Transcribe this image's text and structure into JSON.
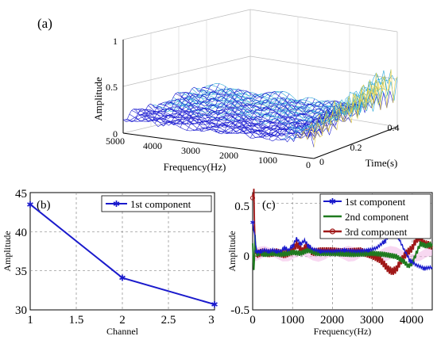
{
  "panels": {
    "a": {
      "label": "(a)",
      "type": "surface3d",
      "zlabel": "Amplitude",
      "xlabel": "Frequency(Hz)",
      "ylabel": "Time(s)",
      "z_ticks": [
        "0",
        "0.5",
        "1"
      ],
      "freq_ticks": [
        "5000",
        "4000",
        "3000",
        "2000",
        "1000",
        "0"
      ],
      "time_ticks": [
        "0",
        "0.2",
        "0.4"
      ],
      "freq_range": [
        0,
        5000
      ],
      "time_range": [
        0,
        0.4
      ],
      "z_range": [
        0,
        1
      ],
      "colors": {
        "low": "#1a1ad0",
        "mid": "#2aa8d8",
        "high": "#e8d040"
      }
    },
    "b": {
      "label": "(b)",
      "xlabel": "Channel",
      "ylabel": "Amplitude",
      "x_ticks": [
        "1",
        "1.5",
        "2",
        "2.5",
        "3"
      ],
      "y_ticks": [
        "30",
        "35",
        "40",
        "45"
      ],
      "legend": [
        "1st component"
      ]
    },
    "c": {
      "label": "(c)",
      "xlabel": "Frequency(Hz)",
      "ylabel": "Amplitude",
      "x_ticks": [
        "0",
        "1000",
        "2000",
        "3000",
        "4000"
      ],
      "y_ticks": [
        "-0.5",
        "0",
        "0.5"
      ],
      "legend": [
        "1st component",
        "2nd component",
        "3rd component"
      ]
    }
  },
  "chart_data": [
    {
      "panel": "b",
      "type": "line",
      "x": [
        1,
        2,
        3
      ],
      "series": [
        {
          "name": "1st component",
          "values": [
            43.5,
            34.1,
            30.7
          ],
          "color": "#1a1acc"
        }
      ],
      "xlim": [
        1,
        3
      ],
      "ylim": [
        30,
        45
      ],
      "grid": true,
      "legend_position": "top-right"
    },
    {
      "panel": "c",
      "type": "line",
      "xlim": [
        0,
        4500
      ],
      "ylim": [
        -0.5,
        0.6
      ],
      "grid": true,
      "legend_position": "top-right",
      "series": [
        {
          "name": "1st component",
          "color": "#1a1acc",
          "x": [
            0,
            50,
            100,
            150,
            200,
            300,
            400,
            500,
            600,
            700,
            800,
            900,
            1000,
            1100,
            1200,
            1300,
            1400,
            1500,
            1700,
            2000,
            2300,
            2600,
            2900,
            3100,
            3300,
            3500,
            3650,
            3800,
            3950,
            4100,
            4300,
            4500
          ],
          "values": [
            0.32,
            0.2,
            0.05,
            0.04,
            0.05,
            0.06,
            0.05,
            0.06,
            0.05,
            0.05,
            0.08,
            0.06,
            0.1,
            0.17,
            0.12,
            0.15,
            0.1,
            0.07,
            0.05,
            0.05,
            0.06,
            0.05,
            0.06,
            0.08,
            0.14,
            0.24,
            0.18,
            0.06,
            -0.04,
            -0.08,
            -0.11,
            -0.1
          ]
        },
        {
          "name": "2nd component",
          "color": "#1f7a1f",
          "x": [
            0,
            30,
            60,
            90,
            130,
            200,
            300,
            500,
            700,
            900,
            1000,
            1200,
            1400,
            1600,
            2000,
            2500,
            3000,
            3300,
            3600,
            3800,
            3900,
            4000,
            4100,
            4200,
            4350,
            4500
          ],
          "values": [
            0.1,
            -0.15,
            0.18,
            0.02,
            0.03,
            0.03,
            0.02,
            0.03,
            0.02,
            0.03,
            0.04,
            0.03,
            0.06,
            0.03,
            0.03,
            0.02,
            0.03,
            0.02,
            0.0,
            -0.05,
            -0.09,
            -0.06,
            0.03,
            0.12,
            0.1,
            0.12
          ]
        },
        {
          "name": "3rd component",
          "color": "#a01818",
          "x": [
            0,
            30,
            60,
            100,
            150,
            250,
            400,
            600,
            800,
            1000,
            1100,
            1250,
            1350,
            1500,
            1700,
            2000,
            2300,
            2700,
            3000,
            3200,
            3400,
            3500,
            3600,
            3700,
            3850,
            4000,
            4100,
            4200,
            4300,
            4500
          ],
          "values": [
            0.55,
            0.6,
            0.1,
            0.02,
            0.03,
            0.04,
            0.03,
            0.04,
            0.02,
            0.05,
            0.12,
            0.05,
            0.1,
            0.04,
            0.05,
            0.05,
            0.04,
            0.05,
            0.01,
            -0.03,
            -0.12,
            -0.14,
            -0.12,
            -0.05,
            0.03,
            0.08,
            0.16,
            0.18,
            0.12,
            0.1
          ]
        }
      ]
    }
  ]
}
